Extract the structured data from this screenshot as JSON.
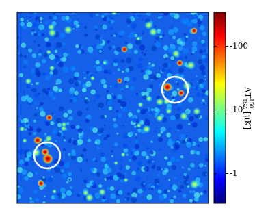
{
  "colorbar": {
    "label_symbol": "ΔT",
    "label_superscript": "150",
    "label_subscript": "tSZ",
    "label_units": "[μK]",
    "scale": "log",
    "lim": [
      -0.34,
      -340
    ],
    "ticks": [
      -1,
      -10,
      -100
    ],
    "colors": [
      "#00007f",
      "#0000ff",
      "#007fff",
      "#00ffff",
      "#7fff7f",
      "#ffff00",
      "#ff7f00",
      "#ff0000",
      "#7f0000"
    ]
  }
}
